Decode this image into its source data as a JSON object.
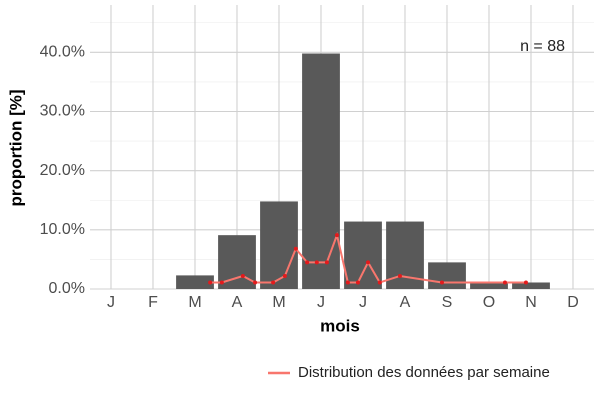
{
  "chart_data": {
    "type": "bar",
    "xlabel": "mois",
    "ylabel": "proportion [%]",
    "annotation": "n = 88",
    "xlim": [
      0.5,
      12.5
    ],
    "xticks": [
      {
        "value": 1,
        "label": "J"
      },
      {
        "value": 2,
        "label": "F"
      },
      {
        "value": 3,
        "label": "M"
      },
      {
        "value": 4,
        "label": "A"
      },
      {
        "value": 5,
        "label": "M"
      },
      {
        "value": 6,
        "label": "J"
      },
      {
        "value": 7,
        "label": "J"
      },
      {
        "value": 8,
        "label": "A"
      },
      {
        "value": 9,
        "label": "S"
      },
      {
        "value": 10,
        "label": "O"
      },
      {
        "value": 11,
        "label": "N"
      },
      {
        "value": 12,
        "label": "D"
      }
    ],
    "ylim": [
      0,
      48
    ],
    "yticks": [
      {
        "value": 0,
        "label": "0.0%"
      },
      {
        "value": 10,
        "label": "10.0%"
      },
      {
        "value": 20,
        "label": "20.0%"
      },
      {
        "value": 30,
        "label": "30.0%"
      },
      {
        "value": 40,
        "label": "40.0%"
      }
    ],
    "minor_yticks": [
      5,
      15,
      25,
      35,
      45
    ],
    "grid": true,
    "bars": {
      "color": "#595959",
      "x": [
        1,
        2,
        3,
        4,
        5,
        6,
        7,
        8,
        9,
        10,
        11,
        12
      ],
      "values": [
        null,
        null,
        2.3,
        9.1,
        14.8,
        39.8,
        11.4,
        11.4,
        4.5,
        1.1,
        1.1,
        null
      ]
    },
    "legend": "bottom-right",
    "series": [
      {
        "name": "Distribution des données par semaine",
        "type": "line",
        "color": "#f8766d",
        "point_color": "#e41a1c",
        "x": [
          3.36,
          3.64,
          4.14,
          4.43,
          4.86,
          5.14,
          5.4,
          5.67,
          5.9,
          6.14,
          6.38,
          6.64,
          6.88,
          7.12,
          7.4,
          7.88,
          8.88,
          10.38,
          10.88
        ],
        "values": [
          1.1,
          1.1,
          2.2,
          1.1,
          1.1,
          2.2,
          6.8,
          4.5,
          4.5,
          4.5,
          9.1,
          1.1,
          1.1,
          4.5,
          1.1,
          2.2,
          1.1,
          1.1,
          1.1
        ]
      }
    ]
  }
}
